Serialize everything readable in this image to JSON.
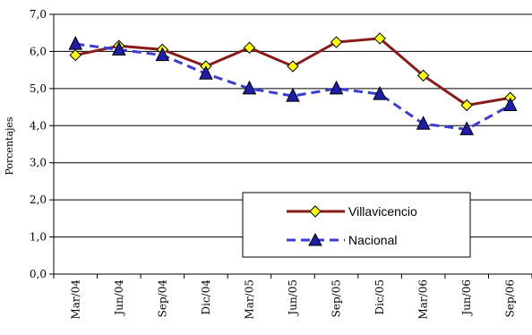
{
  "chart_data": {
    "type": "line",
    "title": "",
    "xlabel": "",
    "ylabel": "Porcentajes",
    "ylim": [
      0,
      7
    ],
    "ytick_step": 1,
    "ytick_labels": [
      "0,0",
      "1,0",
      "2,0",
      "3,0",
      "4,0",
      "5,0",
      "6,0",
      "7,0"
    ],
    "grid": "horizontal",
    "legend_position": "lower-right",
    "categories": [
      "Mar/04",
      "Jun/04",
      "Sep/04",
      "Dic/04",
      "Mar/05",
      "Jun/05",
      "Sep/05",
      "Dic/05",
      "Mar/06",
      "Jun/06",
      "Sep/06"
    ],
    "series": [
      {
        "name": "Villavicencio",
        "color": "#8b1a1a",
        "marker_color": "#ffff00",
        "marker": "diamond",
        "line_style": "solid",
        "values": [
          5.9,
          6.15,
          6.05,
          5.6,
          6.1,
          5.6,
          6.25,
          6.35,
          5.35,
          4.55,
          4.75
        ]
      },
      {
        "name": "Nacional",
        "color": "#3b3bd6",
        "marker_color": "#1e1eaa",
        "marker": "triangle",
        "line_style": "dashed",
        "values": [
          6.2,
          6.05,
          5.9,
          5.4,
          5.0,
          4.8,
          5.0,
          4.85,
          4.05,
          3.9,
          4.55
        ]
      }
    ]
  }
}
